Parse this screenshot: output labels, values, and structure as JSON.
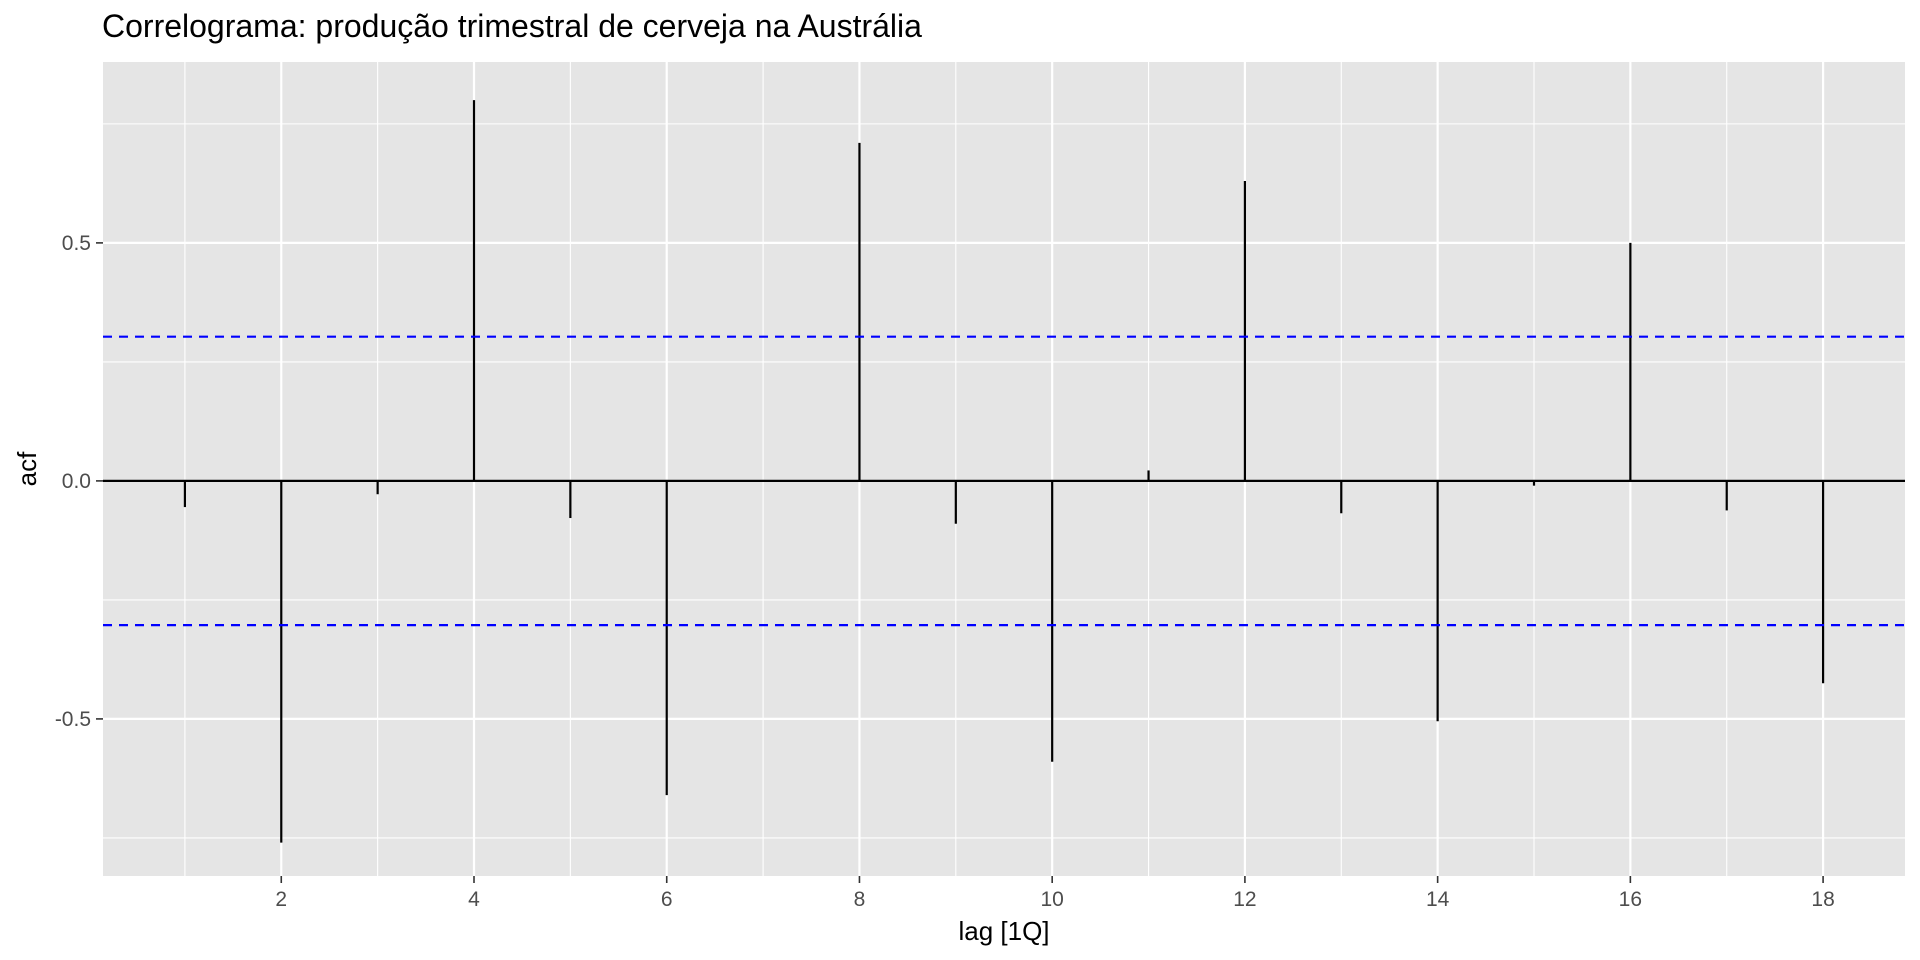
{
  "chart_data": {
    "type": "bar",
    "title": "Correlograma: produção trimestral de cerveja na Austrália",
    "xlabel": "lag [1Q]",
    "ylabel": "acf",
    "xlim": [
      0.15,
      18.85
    ],
    "ylim": [
      -0.83,
      0.88
    ],
    "x_ticks": [
      2,
      4,
      6,
      8,
      10,
      12,
      14,
      16,
      18
    ],
    "x_tick_labels": [
      "2",
      "4",
      "6",
      "8",
      "10",
      "12",
      "14",
      "16",
      "18"
    ],
    "y_ticks": [
      -0.5,
      0,
      0.5
    ],
    "y_tick_labels": [
      "-0.5",
      "0.0",
      "0.5"
    ],
    "grid": true,
    "lags": [
      1,
      2,
      3,
      4,
      5,
      6,
      7,
      8,
      9,
      10,
      11,
      12,
      13,
      14,
      15,
      16,
      17,
      18
    ],
    "values": [
      -0.055,
      -0.76,
      -0.028,
      0.8,
      -0.078,
      -0.66,
      0.0,
      0.71,
      -0.09,
      -0.59,
      0.022,
      0.63,
      -0.068,
      -0.505,
      -0.01,
      0.5,
      -0.062,
      -0.425
    ],
    "confidence_bounds": [
      0.303,
      -0.303
    ],
    "colors": {
      "panel": "#e5e5e5",
      "grid": "#ffffff",
      "bars": "#000000",
      "confidence": "#0000ff"
    }
  }
}
